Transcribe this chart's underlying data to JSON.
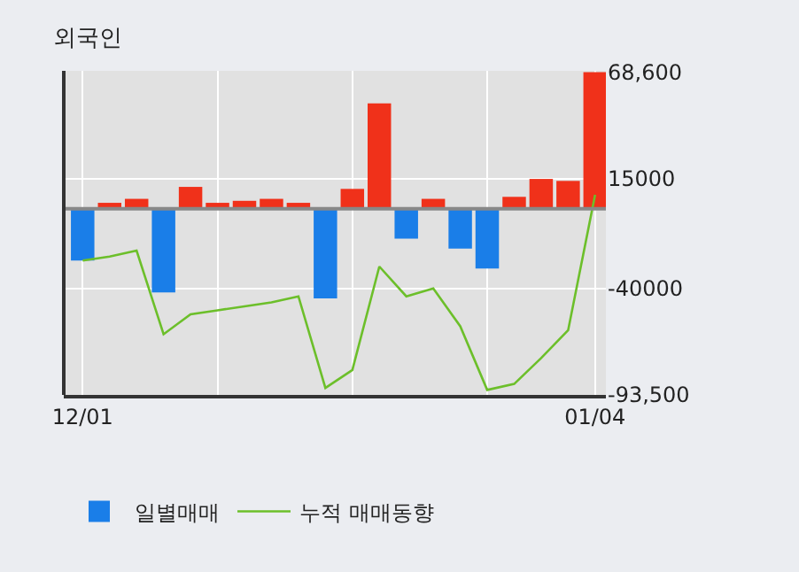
{
  "chart_data": {
    "type": "bar",
    "title": "외국인",
    "categories": [
      "12/01",
      null,
      null,
      null,
      null,
      null,
      null,
      null,
      null,
      null,
      null,
      null,
      null,
      null,
      null,
      null,
      null,
      null,
      null,
      "01/04"
    ],
    "series": [
      {
        "name": "일별매매",
        "colors": [
          "#1a7ee8",
          "#f0311a",
          "#f0311a",
          "#1a7ee8",
          "#f0311a",
          "#f0311a",
          "#f0311a",
          "#f0311a",
          "#f0311a",
          "#1a7ee8",
          "#f0311a",
          "#f0311a",
          "#1a7ee8",
          "#f0311a",
          "#1a7ee8",
          "#1a7ee8",
          "#f0311a",
          "#f0311a",
          "#f0311a",
          "#f0311a"
        ],
        "values": [
          -26000,
          3000,
          5000,
          -42000,
          11000,
          3000,
          4000,
          5000,
          3000,
          -45000,
          10000,
          53000,
          -15000,
          5000,
          -20000,
          -30000,
          6000,
          15000,
          14000,
          68600
        ]
      },
      {
        "name": "누적 매매동향",
        "type": "line",
        "color": "#6cbf2a",
        "values": [
          -26000,
          -24000,
          -21000,
          -63000,
          -53000,
          -51000,
          -49000,
          -47000,
          -44000,
          -90000,
          -81000,
          -29000,
          -44000,
          -40000,
          -59000,
          -91000,
          -88000,
          -75000,
          -61000,
          7000
        ]
      }
    ],
    "ylim": [
      -93500,
      69300
    ],
    "yticks": [
      {
        "value": 68600,
        "label": "68,600"
      },
      15000,
      -40000,
      {
        "value": -93500,
        "label": "-93,500"
      }
    ],
    "ref_lines": [
      {
        "axis": "y",
        "value": 0,
        "color": "#888888"
      }
    ],
    "grid": true,
    "legend": "bottom",
    "marker": "none",
    "line_style": "solid"
  }
}
